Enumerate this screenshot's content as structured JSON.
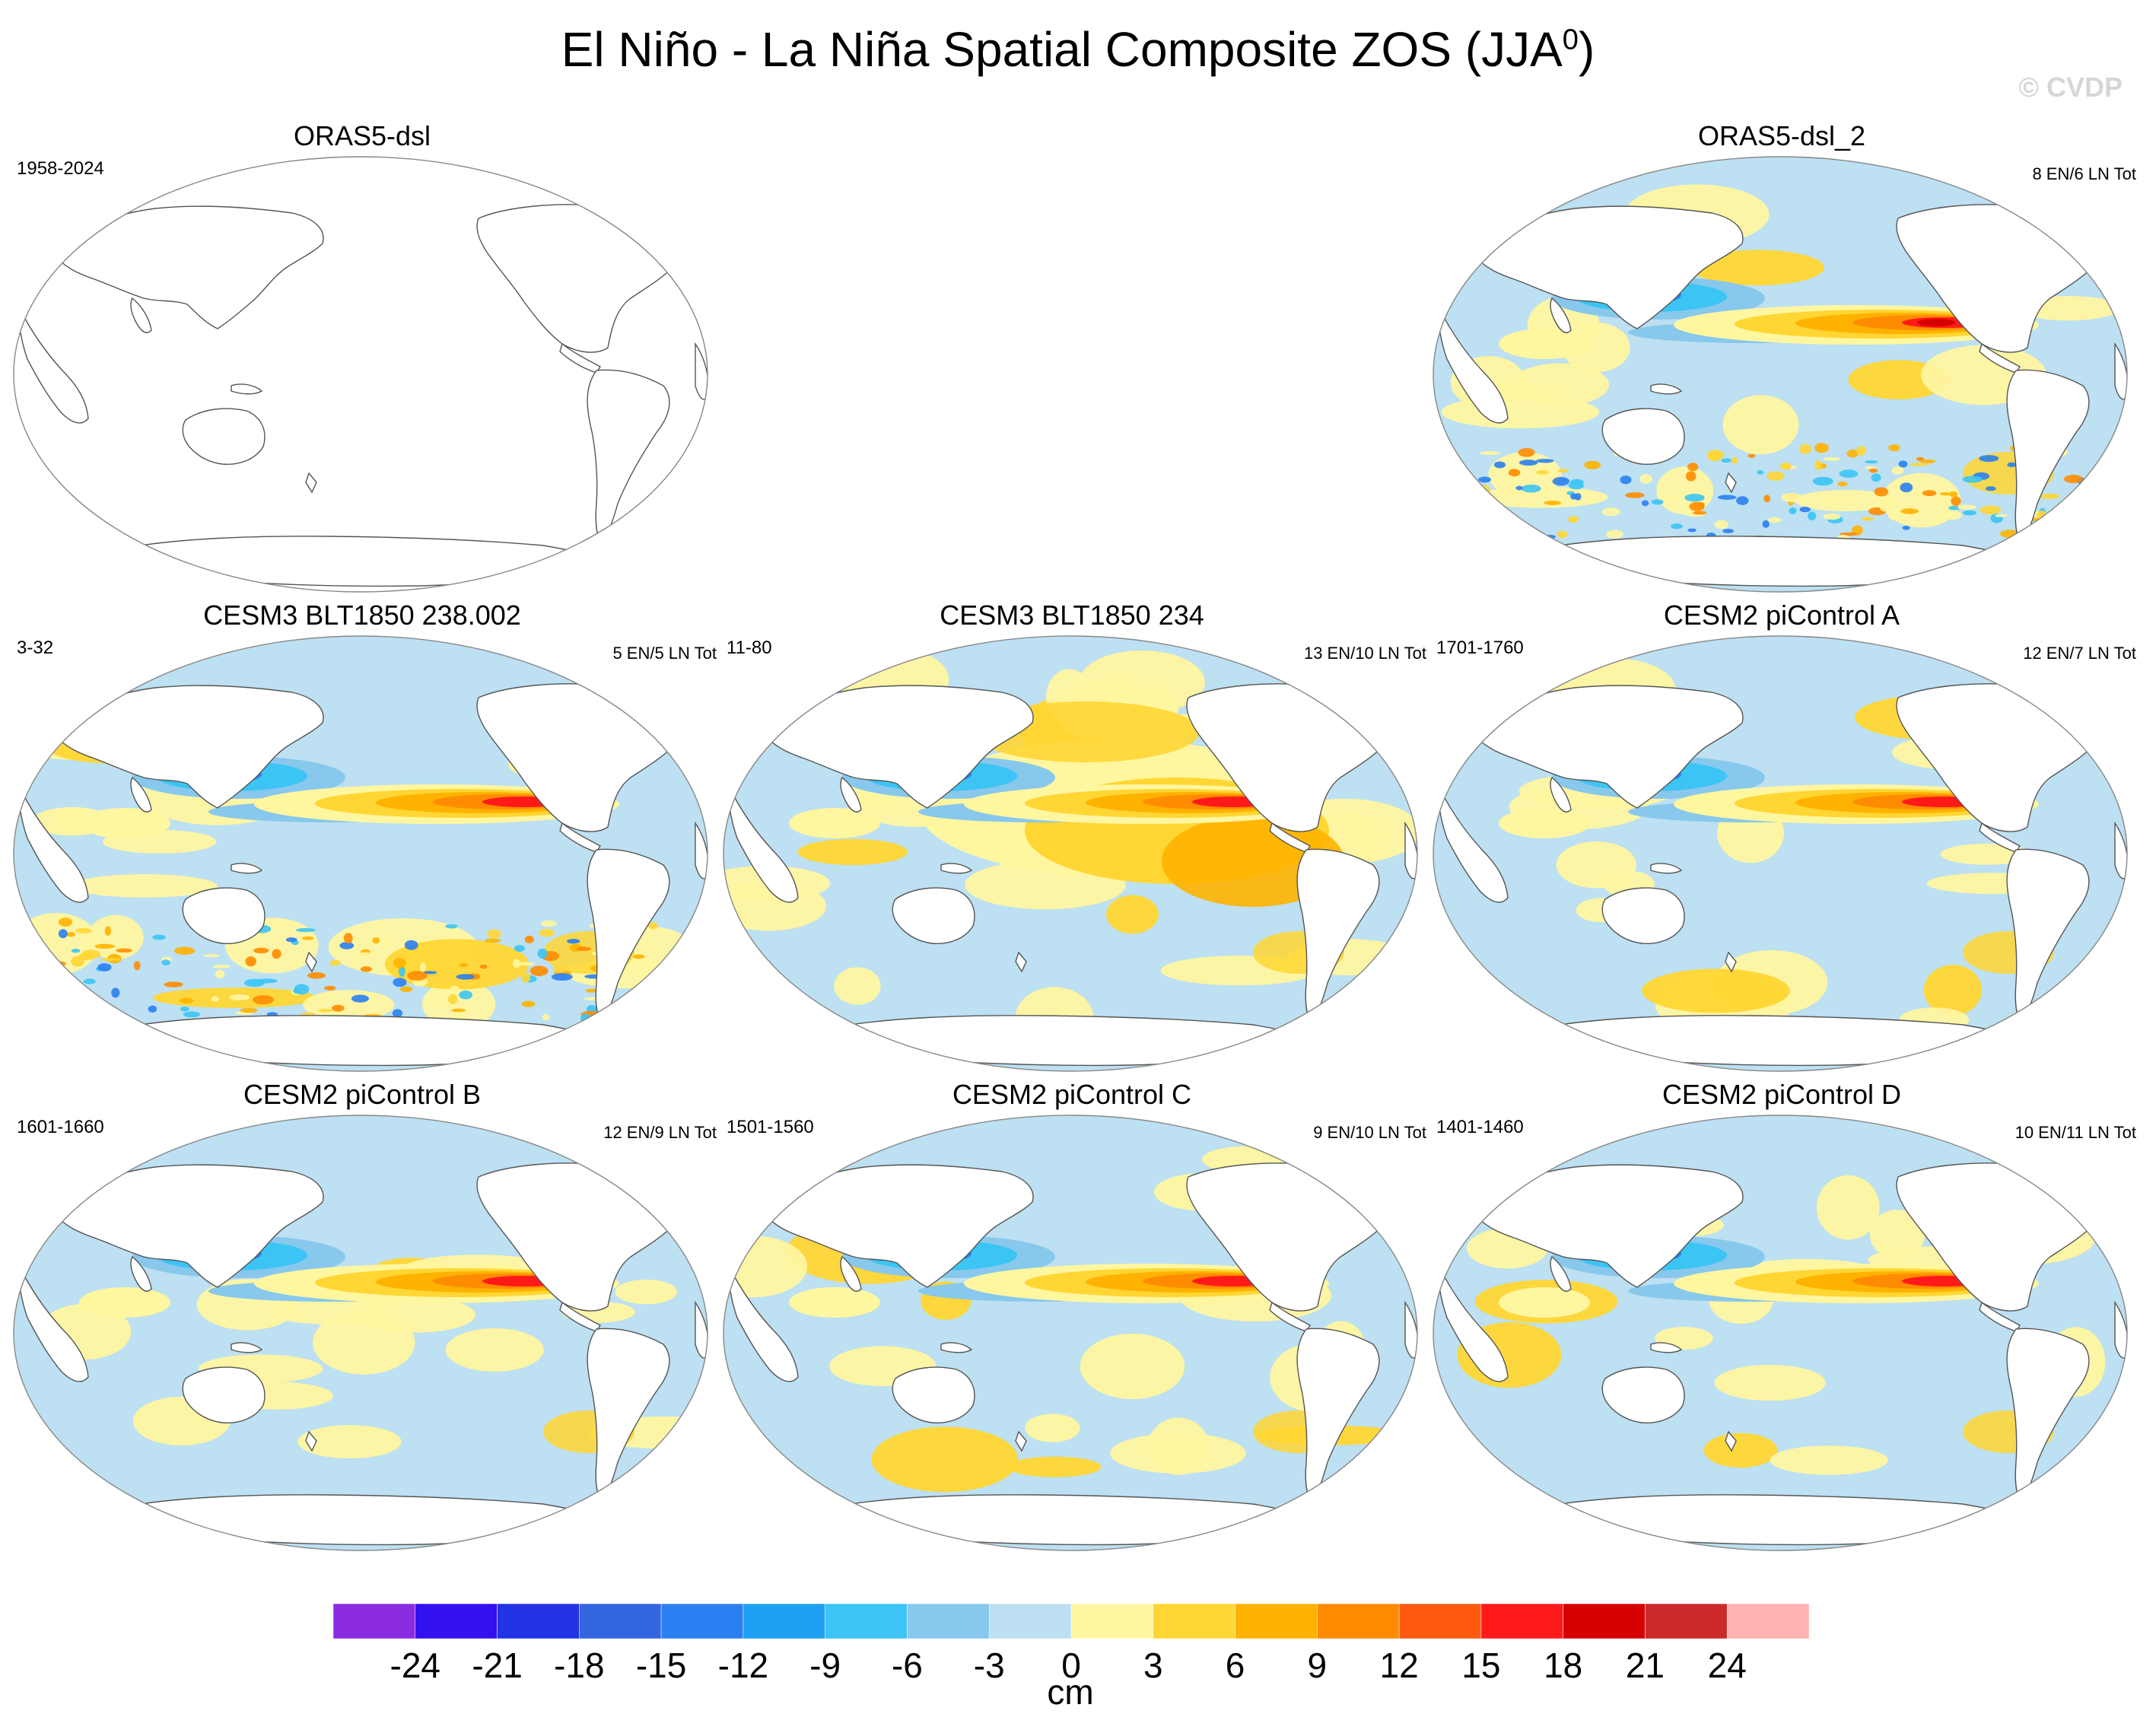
{
  "figure": {
    "title_main": "El Niño - La Niña Spatial Composite ZOS (JJA",
    "title_sup": "0",
    "title_end": ")",
    "credit": "© CVDP"
  },
  "panels": [
    {
      "id": "orig",
      "title": "ORAS5-dsl",
      "left_label": "1958-2024",
      "right_label": "",
      "pattern": "empty"
    },
    {
      "id": "p2",
      "title": "ORAS5-dsl_2",
      "left_label": "",
      "right_label": "8 EN/6 LN Tot",
      "pattern": "obs"
    },
    {
      "id": "p3",
      "title": "CESM3 BLT1850 238.002",
      "left_label": "3-32",
      "right_label": "5 EN/5 LN Tot",
      "pattern": "noisy"
    },
    {
      "id": "p4",
      "title": "CESM3 BLT1850 234",
      "left_label": "11-80",
      "right_label": "13 EN/10 LN Tot",
      "pattern": "warm"
    },
    {
      "id": "p5",
      "title": "CESM2 piControl A",
      "left_label": "1701-1760",
      "right_label": "12 EN/7 LN Tot",
      "pattern": "smooth"
    },
    {
      "id": "p6",
      "title": "CESM2 piControl B",
      "left_label": "1601-1660",
      "right_label": "12 EN/9 LN Tot",
      "pattern": "smooth"
    },
    {
      "id": "p7",
      "title": "CESM2 piControl C",
      "left_label": "1501-1560",
      "right_label": "9 EN/10 LN Tot",
      "pattern": "smooth"
    },
    {
      "id": "p8",
      "title": "CESM2 piControl D",
      "left_label": "1401-1460",
      "right_label": "10 EN/11 LN Tot",
      "pattern": "smooth"
    }
  ],
  "colorbar": {
    "unit_label": "cm",
    "tick_labels": [
      "-24",
      "-21",
      "-18",
      "-15",
      "-12",
      "-9",
      "-6",
      "-3",
      "0",
      "3",
      "6",
      "9",
      "12",
      "15",
      "18",
      "21",
      "24"
    ],
    "colors": [
      "#8a2be2",
      "#3311ee",
      "#2233e6",
      "#3366e0",
      "#2a80f0",
      "#1ea0f2",
      "#3cc4f4",
      "#88c8ec",
      "#bde0f2",
      "#fff6a0",
      "#ffd633",
      "#ffb200",
      "#ff8c00",
      "#ff5a10",
      "#ff1a1a",
      "#d60000",
      "#cc2a2a",
      "#ffb3b3"
    ]
  }
}
